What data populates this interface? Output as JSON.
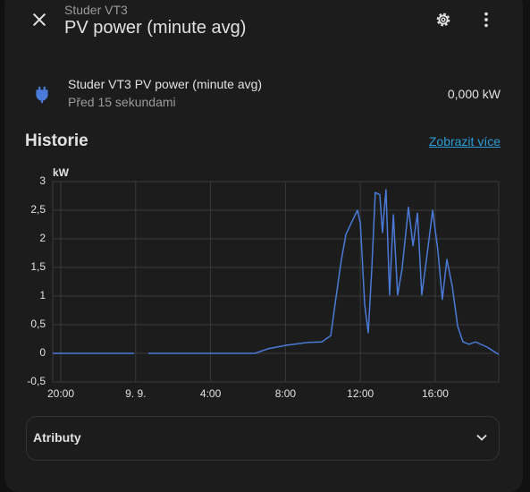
{
  "header": {
    "subtitle": "Studer VT3",
    "title": "PV power (minute avg)"
  },
  "entity": {
    "name": "Studer VT3 PV power (minute avg)",
    "updated": "Před 15 sekundami",
    "state": "0,000 kW"
  },
  "history": {
    "title": "Historie",
    "more_link": "Zobrazit více"
  },
  "chart_data": {
    "type": "line",
    "y_unit": "kW",
    "color": "#4a7bd8",
    "grid": true,
    "xlim": [
      19.57,
      43.39
    ],
    "xticks": [
      {
        "value": 20,
        "label": "20:00"
      },
      {
        "value": 24,
        "label": "9. 9."
      },
      {
        "value": 28,
        "label": "4:00"
      },
      {
        "value": 32,
        "label": "8:00"
      },
      {
        "value": 36,
        "label": "12:00"
      },
      {
        "value": 40,
        "label": "16:00"
      }
    ],
    "ylim": [
      -0.5,
      3
    ],
    "yticks": [
      {
        "value": -0.5,
        "label": "-0,5"
      },
      0,
      {
        "value": 0.5,
        "label": "0,5"
      },
      1,
      {
        "value": 1.5,
        "label": "1,5"
      },
      2,
      {
        "value": 2.5,
        "label": "2,5"
      },
      3
    ],
    "x": [
      19.57,
      23.91,
      24.3,
      24.68,
      30.36,
      31.07,
      32.03,
      33.22,
      33.94,
      34.42,
      34.65,
      34.99,
      35.23,
      35.61,
      35.85,
      36.0,
      36.23,
      36.42,
      36.61,
      36.8,
      37.04,
      37.18,
      37.37,
      37.56,
      37.76,
      37.99,
      38.23,
      38.57,
      38.81,
      39.05,
      39.28,
      39.52,
      39.86,
      40.14,
      40.38,
      40.62,
      40.91,
      41.2,
      41.48,
      41.81,
      42.15,
      42.77,
      43.39
    ],
    "values": [
      0,
      0,
      null,
      0,
      0,
      0.08,
      0.14,
      0.19,
      0.2,
      0.31,
      0.86,
      1.64,
      2.08,
      2.34,
      2.5,
      2.27,
      0.86,
      0.36,
      1.48,
      2.81,
      2.77,
      2.11,
      2.86,
      1.02,
      2.42,
      1.02,
      1.48,
      2.55,
      1.88,
      2.45,
      1.02,
      1.61,
      2.5,
      1.8,
      0.94,
      1.64,
      1.17,
      0.47,
      0.2,
      0.16,
      0.2,
      0.11,
      -0.02
    ]
  },
  "attributes": {
    "title": "Atributy"
  }
}
